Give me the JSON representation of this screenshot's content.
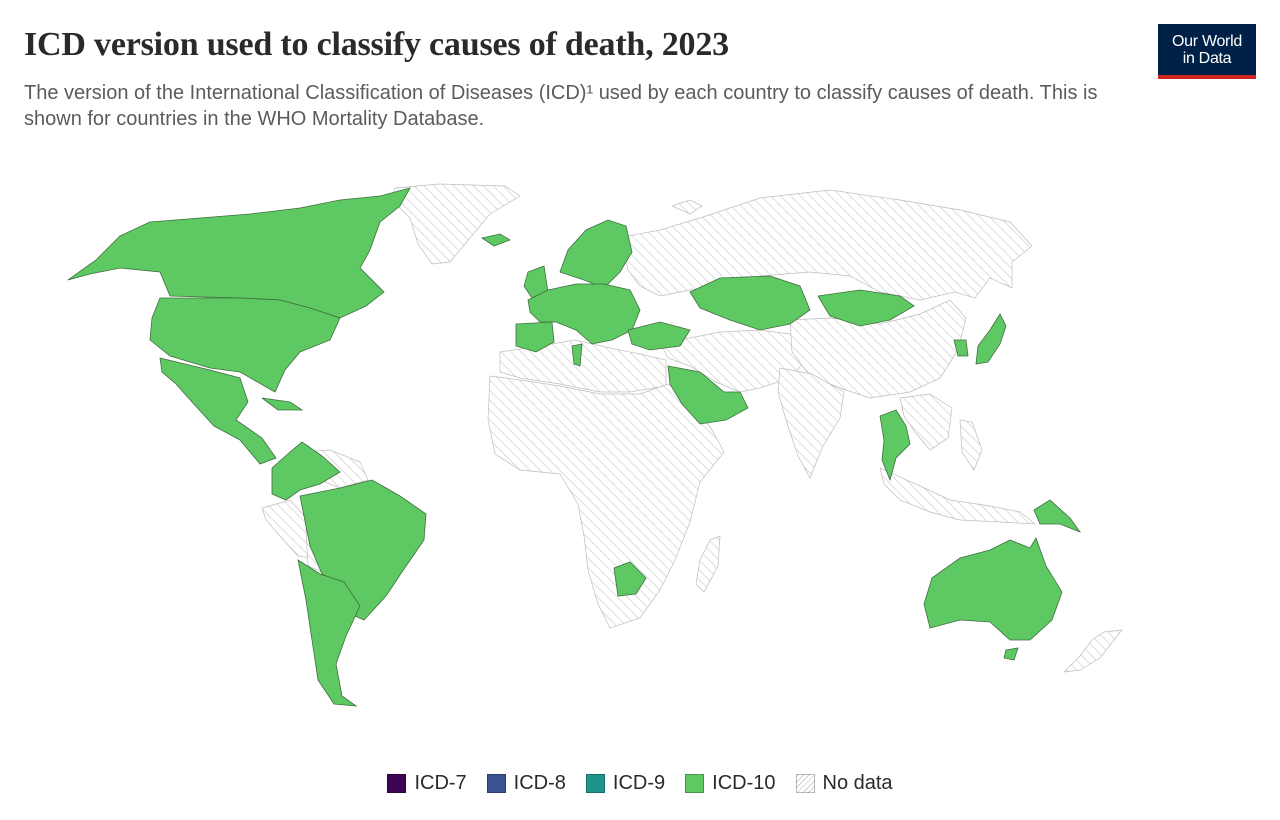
{
  "title": "ICD version used to classify causes of death, 2023",
  "subtitle": "The version of the International Classification of Diseases (ICD)¹ used by each country to classify causes of death. This is shown for countries in the WHO Mortality Database.",
  "logo": {
    "line1": "Our World",
    "line2": "in Data"
  },
  "colors": {
    "icd7": "#3d0653",
    "icd8": "#3a5591",
    "icd9": "#1f948b",
    "icd10": "#5ec962",
    "nodata_stroke": "#cfcfcf",
    "land_border": "#555555"
  },
  "legend": [
    {
      "label": "ICD-7",
      "key": "icd7"
    },
    {
      "label": "ICD-8",
      "key": "icd8"
    },
    {
      "label": "ICD-9",
      "key": "icd9"
    },
    {
      "label": "ICD-10",
      "key": "icd10"
    },
    {
      "label": "No data",
      "key": "nodata"
    }
  ]
}
